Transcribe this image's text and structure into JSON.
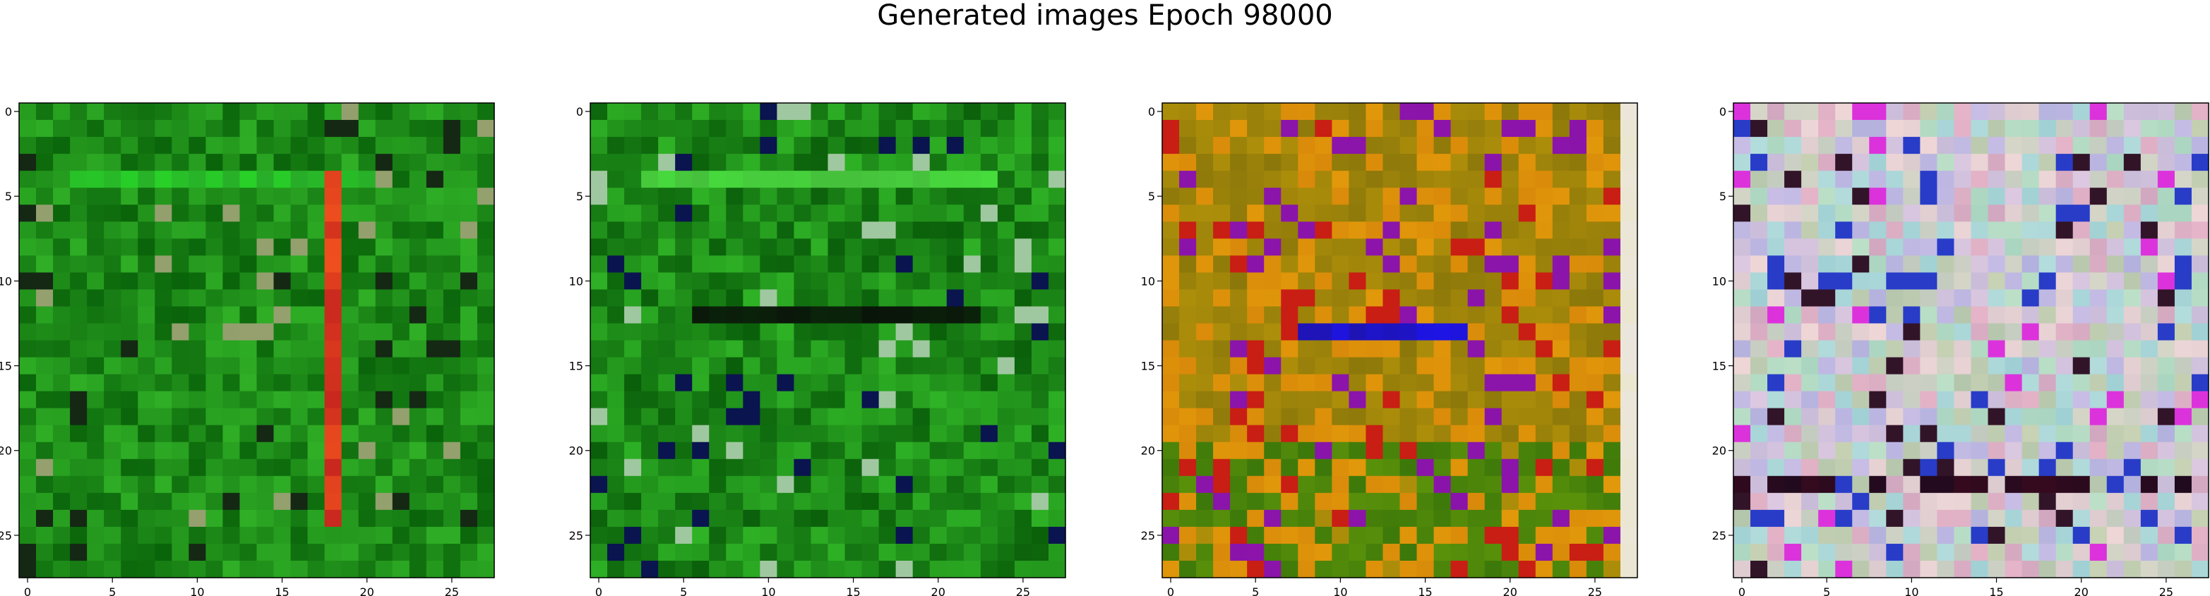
{
  "figure": {
    "title": "Generated images Epoch 98000"
  },
  "chart_data": [
    {
      "type": "heatmap",
      "palette": "green",
      "rows": 28,
      "cols": 28,
      "xlim": [
        -0.5,
        27.5
      ],
      "ylim": [
        27.5,
        -0.5
      ],
      "xticks": [
        0,
        5,
        10,
        15,
        20,
        25
      ],
      "yticks": [
        0,
        5,
        10,
        15,
        20,
        25
      ],
      "tick_labels_x": [
        "0",
        "5",
        "10",
        "15",
        "20",
        "25"
      ],
      "tick_labels_y": [
        "0",
        "5",
        "10",
        "15",
        "20",
        "25"
      ],
      "features": {
        "red_vertical_line_col": 18,
        "light_horizontal_row": 4
      }
    },
    {
      "type": "heatmap",
      "palette": "green-dark",
      "rows": 28,
      "cols": 28,
      "xlim": [
        -0.5,
        27.5
      ],
      "ylim": [
        27.5,
        -0.5
      ],
      "xticks": [
        0,
        5,
        10,
        15,
        20,
        25
      ],
      "yticks": [
        0,
        5,
        10,
        15,
        20,
        25
      ],
      "tick_labels_x": [
        "0",
        "5",
        "10",
        "15",
        "20",
        "25"
      ],
      "tick_labels_y": [
        "0",
        "5",
        "10",
        "15",
        "20",
        "25"
      ],
      "features": {
        "light_horizontal_row": 4,
        "dark_horizontal_row": 12
      }
    },
    {
      "type": "heatmap",
      "palette": "olive-orange-purple",
      "rows": 28,
      "cols": 28,
      "xlim": [
        -0.5,
        27.5
      ],
      "ylim": [
        27.5,
        -0.5
      ],
      "xticks": [
        0,
        5,
        10,
        15,
        20,
        25
      ],
      "yticks": [
        0,
        5,
        10,
        15,
        20,
        25
      ],
      "tick_labels_x": [
        "0",
        "5",
        "10",
        "15",
        "20",
        "25"
      ],
      "tick_labels_y": [
        "0",
        "5",
        "10",
        "15",
        "20",
        "25"
      ],
      "features": {
        "light_right_column": 27,
        "blue_horizontal_row": 13
      }
    },
    {
      "type": "heatmap",
      "palette": "pastel",
      "rows": 28,
      "cols": 28,
      "xlim": [
        -0.5,
        27.5
      ],
      "ylim": [
        27.5,
        -0.5
      ],
      "xticks": [
        0,
        5,
        10,
        15,
        20,
        25
      ],
      "yticks": [
        0,
        5,
        10,
        15,
        20,
        25
      ],
      "tick_labels_x": [
        "0",
        "5",
        "10",
        "15",
        "20",
        "25"
      ],
      "tick_labels_y": [
        "0",
        "5",
        "10",
        "15",
        "20",
        "25"
      ],
      "features": {
        "dark_horizontal_row": 22
      }
    }
  ]
}
